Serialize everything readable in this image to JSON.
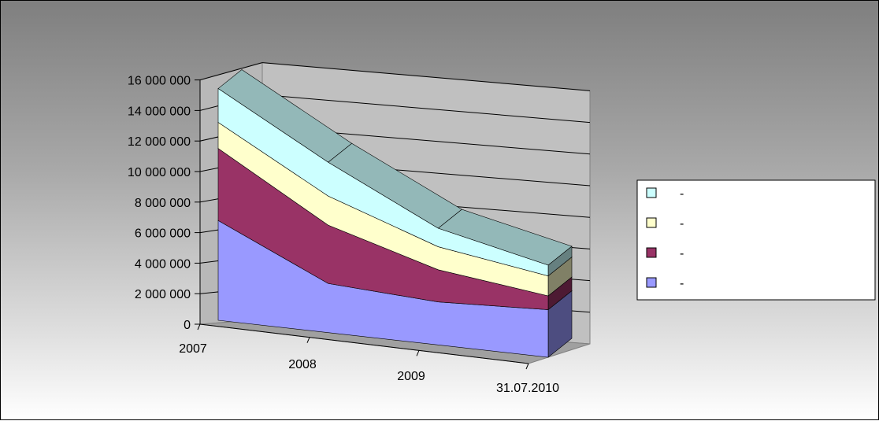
{
  "chart_data": {
    "type": "area",
    "stacked": true,
    "three_d": true,
    "categories": [
      "2007",
      "2008",
      "2009",
      "31.07.2010"
    ],
    "y_ticks": [
      "0",
      "2 000 000",
      "4 000 000",
      "6 000 000",
      "8 000 000",
      "10 000 000",
      "12 000 000",
      "14 000 000",
      "16 000 000"
    ],
    "ylim": [
      0,
      16000000
    ],
    "grid": true,
    "legend_position": "right",
    "series": [
      {
        "legend_label": "-",
        "color": "#9999ff",
        "values": [
          6500000,
          3200000,
          2800000,
          3100000
        ]
      },
      {
        "legend_label": "-",
        "color": "#993366",
        "values": [
          4700000,
          3800000,
          2100000,
          900000
        ]
      },
      {
        "legend_label": "-",
        "color": "#ffffcc",
        "values": [
          1700000,
          1900000,
          1500000,
          1300000
        ]
      },
      {
        "legend_label": "-",
        "color": "#ccffff",
        "values": [
          2200000,
          2200000,
          1200000,
          700000
        ]
      }
    ]
  }
}
